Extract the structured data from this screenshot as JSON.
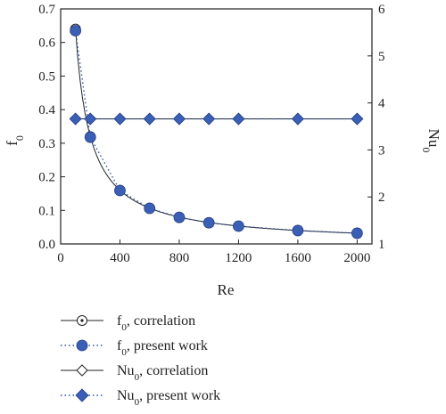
{
  "chart_data": {
    "type": "line",
    "xlabel": "Re",
    "ylabel_left": {
      "base": "f",
      "sub": "0"
    },
    "ylabel_right": {
      "base": "Nu",
      "sub": "0"
    },
    "xlim": [
      0,
      2100
    ],
    "ylim_left": [
      0,
      0.7
    ],
    "ylim_right": [
      1,
      6
    ],
    "x_ticks": [
      0,
      400,
      800,
      1200,
      1600,
      2000
    ],
    "y_left_ticks": [
      0.0,
      0.1,
      0.2,
      0.3,
      0.4,
      0.5,
      0.6,
      0.7
    ],
    "y_right_ticks": [
      1,
      2,
      3,
      4,
      5,
      6
    ],
    "grid": false,
    "legend_position": "below plot",
    "colors": {
      "correlation": "#222222",
      "present": "#2e55a8",
      "marker_fill": "#3a5fb5"
    },
    "series": [
      {
        "legend_base": "f",
        "legend_sub": "0",
        "legend_rest": ", correlation",
        "axis": "left",
        "style": "correlation-circle",
        "x": [
          100,
          200,
          400,
          600,
          800,
          1000,
          1200,
          1600,
          2000
        ],
        "y": [
          0.64,
          0.32,
          0.16,
          0.107,
          0.08,
          0.064,
          0.053,
          0.04,
          0.032
        ]
      },
      {
        "legend_base": "f",
        "legend_sub": "0",
        "legend_rest": ", present work",
        "axis": "left",
        "style": "present-circle",
        "x": [
          100,
          200,
          400,
          600,
          800,
          1000,
          1200,
          1600,
          2000
        ],
        "y": [
          0.635,
          0.318,
          0.159,
          0.106,
          0.079,
          0.063,
          0.053,
          0.04,
          0.032
        ]
      },
      {
        "legend_base": "Nu",
        "legend_sub": "0",
        "legend_rest": ", correlation",
        "axis": "right",
        "style": "correlation-diamond",
        "x": [
          100,
          200,
          400,
          600,
          800,
          1000,
          1200,
          1600,
          2000
        ],
        "y": [
          3.66,
          3.66,
          3.66,
          3.66,
          3.66,
          3.66,
          3.66,
          3.66,
          3.66
        ]
      },
      {
        "legend_base": "Nu",
        "legend_sub": "0",
        "legend_rest": ", present work",
        "axis": "right",
        "style": "present-diamond",
        "x": [
          100,
          200,
          400,
          600,
          800,
          1000,
          1200,
          1600,
          2000
        ],
        "y": [
          3.66,
          3.66,
          3.66,
          3.66,
          3.66,
          3.66,
          3.66,
          3.66,
          3.66
        ]
      }
    ]
  }
}
